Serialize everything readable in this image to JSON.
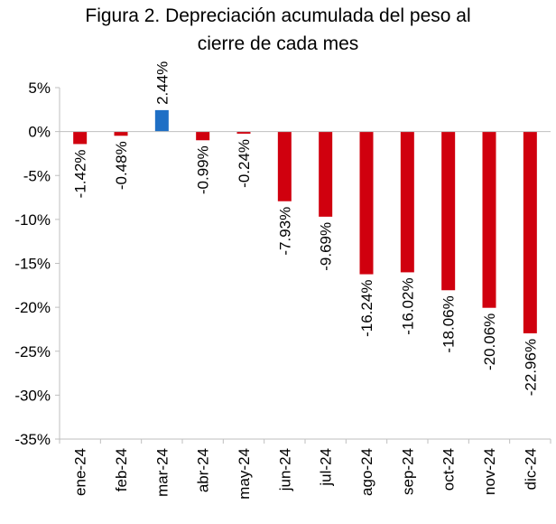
{
  "chart_data": {
    "type": "bar",
    "title_line1": "Figura 2. Depreciación acumulada del peso al",
    "title_line2": "cierre de cada mes",
    "categories": [
      "ene-24",
      "feb-24",
      "mar-24",
      "abr-24",
      "may-24",
      "jun-24",
      "jul-24",
      "ago-24",
      "sep-24",
      "oct-24",
      "nov-24",
      "dic-24"
    ],
    "values": [
      -1.42,
      -0.48,
      2.44,
      -0.99,
      -0.24,
      -7.93,
      -9.69,
      -16.24,
      -16.02,
      -18.06,
      -20.06,
      -22.96
    ],
    "data_labels": [
      "-1.42%",
      "-0.48%",
      "2.44%",
      "-0.99%",
      "-0.24%",
      "-7.93%",
      "-9.69%",
      "-16.24%",
      "-16.02%",
      "-18.06%",
      "-20.06%",
      "-22.96%"
    ],
    "y_ticks": [
      5,
      0,
      -5,
      -10,
      -15,
      -20,
      -25,
      -30,
      -35
    ],
    "y_tick_labels": [
      "5%",
      "0%",
      "-5%",
      "-10%",
      "-15%",
      "-20%",
      "-25%",
      "-30%",
      "-35%"
    ],
    "ylim": [
      -35,
      5
    ],
    "positive_color": "#1F6FC5",
    "negative_color": "#D0000E",
    "grid": false,
    "legend": "none"
  }
}
